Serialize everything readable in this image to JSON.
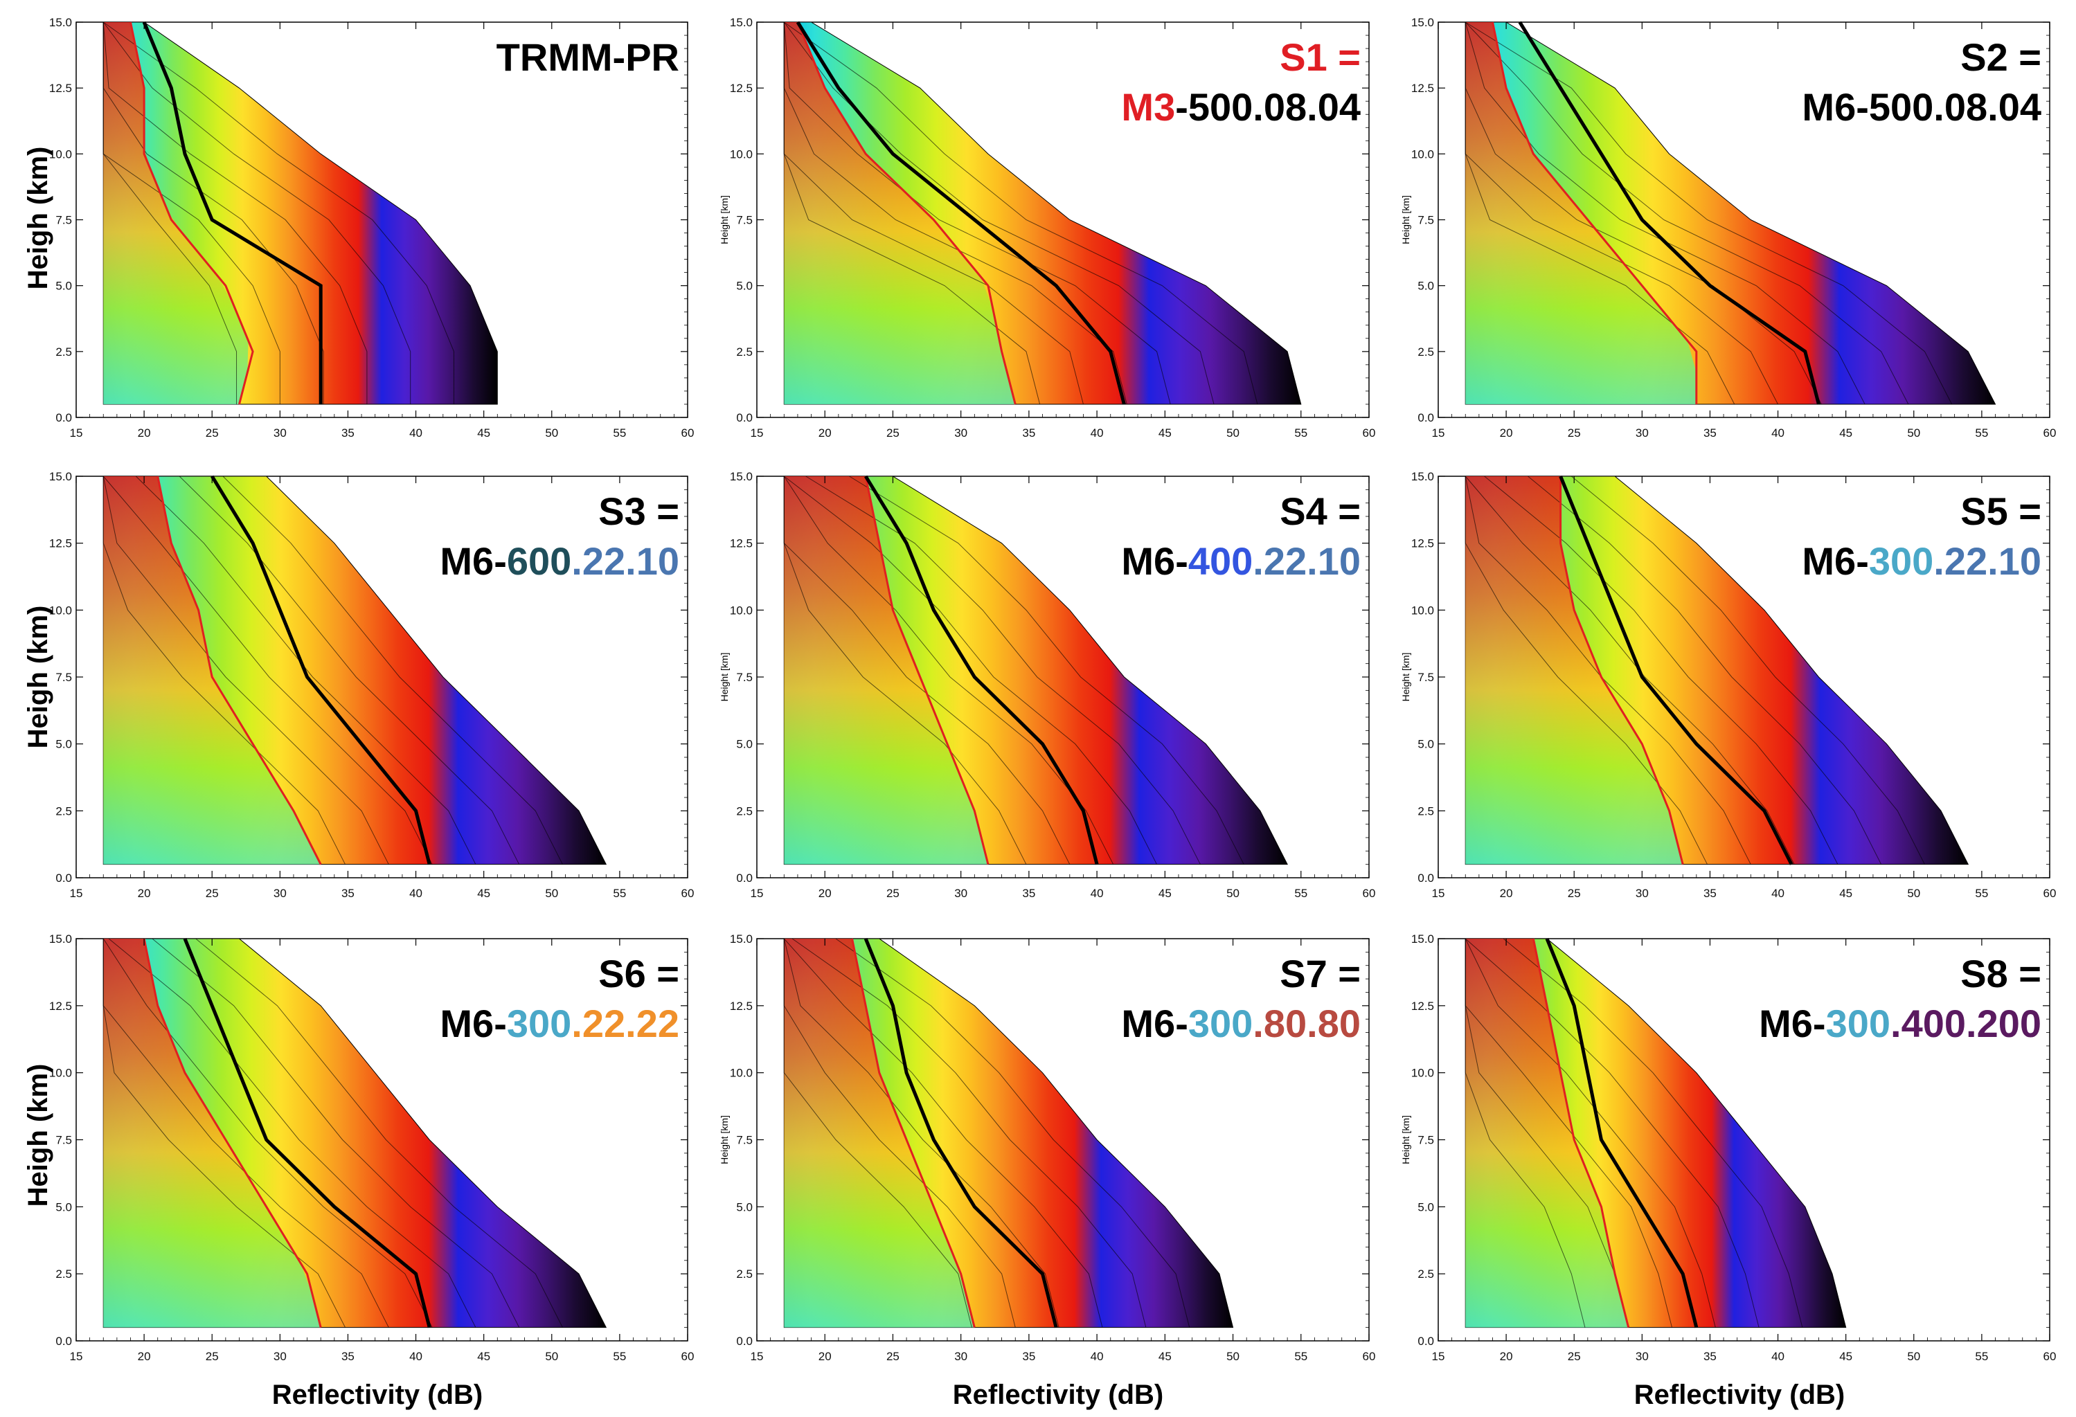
{
  "colors": {
    "contour_scale": [
      "#00bfe8",
      "#2ee0d8",
      "#4ee8a0",
      "#7ce85a",
      "#a8ec2a",
      "#d8f020",
      "#fde02a",
      "#fcc020",
      "#f89820",
      "#f46a18",
      "#ee3a10",
      "#e81a10"
    ],
    "outer_scale": [
      "#2020e0",
      "#4a20d0",
      "#5818a8",
      "#3c1270",
      "#1a0a30",
      "#000000"
    ],
    "median_line": "#000000",
    "tropical_line": "#e02020",
    "black": "#000000",
    "red": "#e01e24",
    "darkteal": "#1f4e5a",
    "steelblue": "#4a76b0",
    "royalblue": "#3355e0",
    "lightblue": "#4aa8c8",
    "orange": "#f0902a",
    "brownred": "#b84a40",
    "purple": "#5a1a60"
  },
  "axes": {
    "ylabel_bold": "Heigh (km)",
    "ylabel_small": "Height [km]",
    "xlabel": "Reflectivity (dB)",
    "x_ticks": [
      "15",
      "20",
      "25",
      "30",
      "35",
      "40",
      "45",
      "50",
      "55",
      "60"
    ],
    "y_ticks": [
      "0.0",
      "2.5",
      "5.0",
      "7.5",
      "10.0",
      "12.5",
      "15.0"
    ]
  },
  "chart_data": [
    {
      "type": "heatmap",
      "title_lines": [
        [
          {
            "text": "TRMM-PR",
            "color": "black"
          }
        ]
      ],
      "xlim": [
        15,
        60
      ],
      "ylim": [
        0,
        15
      ],
      "max_reflectivity_profile": {
        "height": [
          0.5,
          2.5,
          5.0,
          7.5,
          10.0,
          12.5,
          15.0
        ],
        "reflectivity": [
          46,
          46,
          44,
          40,
          33,
          27,
          20
        ]
      },
      "median_profile": {
        "height": [
          0.5,
          2.5,
          5.0,
          7.5,
          10.0,
          12.5,
          15.0
        ],
        "reflectivity": [
          33,
          33,
          33,
          25,
          23,
          22,
          20
        ]
      },
      "tropical_profile": {
        "height": [
          0.5,
          2.5,
          5.0,
          7.5,
          10.0,
          12.5,
          15.0
        ],
        "reflectivity": [
          27,
          28,
          26,
          22,
          20,
          20,
          19
        ]
      }
    },
    {
      "type": "heatmap",
      "title_lines": [
        [
          {
            "text": "S1 =",
            "color": "red"
          }
        ],
        [
          {
            "text": "M3",
            "color": "red"
          },
          {
            "text": "-500.08.04",
            "color": "black"
          }
        ]
      ],
      "xlim": [
        15,
        60
      ],
      "ylim": [
        0,
        15
      ],
      "max_reflectivity_profile": {
        "height": [
          0.5,
          2.5,
          5.0,
          7.5,
          10.0,
          12.5,
          15.0
        ],
        "reflectivity": [
          55,
          54,
          48,
          38,
          32,
          27,
          19
        ]
      },
      "median_profile": {
        "height": [
          0.5,
          2.5,
          5.0,
          7.5,
          10.0,
          12.5,
          15.0
        ],
        "reflectivity": [
          42,
          41,
          37,
          31,
          25,
          21,
          18
        ]
      },
      "tropical_profile": {
        "height": [
          0.5,
          2.5,
          5.0,
          7.5,
          10.0,
          12.5,
          15.0
        ],
        "reflectivity": [
          34,
          33,
          32,
          28,
          23,
          20,
          18
        ]
      }
    },
    {
      "type": "heatmap",
      "title_lines": [
        [
          {
            "text": "S2 =",
            "color": "black"
          }
        ],
        [
          {
            "text": "M6-500.08.04",
            "color": "black"
          }
        ]
      ],
      "xlim": [
        15,
        60
      ],
      "ylim": [
        0,
        15
      ],
      "max_reflectivity_profile": {
        "height": [
          0.5,
          2.5,
          5.0,
          7.5,
          10.0,
          12.5,
          15.0
        ],
        "reflectivity": [
          56,
          54,
          48,
          38,
          32,
          28,
          20
        ]
      },
      "median_profile": {
        "height": [
          0.5,
          2.5,
          5.0,
          7.5,
          10.0,
          12.5,
          15.0
        ],
        "reflectivity": [
          43,
          42,
          35,
          30,
          27,
          24,
          21
        ]
      },
      "tropical_profile": {
        "height": [
          0.5,
          2.5,
          5.0,
          7.5,
          10.0,
          12.5,
          15.0
        ],
        "reflectivity": [
          34,
          34,
          30,
          26,
          22,
          20,
          19
        ]
      }
    },
    {
      "type": "heatmap",
      "title_lines": [
        [
          {
            "text": "S3 =",
            "color": "black"
          }
        ],
        [
          {
            "text": "M6-",
            "color": "black"
          },
          {
            "text": "600",
            "color": "darkteal"
          },
          {
            "text": ".22.10",
            "color": "steelblue"
          }
        ]
      ],
      "xlim": [
        15,
        60
      ],
      "ylim": [
        0,
        15
      ],
      "max_reflectivity_profile": {
        "height": [
          0.5,
          2.5,
          5.0,
          7.5,
          10.0,
          12.5,
          15.0
        ],
        "reflectivity": [
          54,
          52,
          47,
          42,
          38,
          34,
          29
        ]
      },
      "median_profile": {
        "height": [
          0.5,
          2.5,
          5.0,
          7.5,
          10.0,
          12.5,
          15.0
        ],
        "reflectivity": [
          41,
          40,
          36,
          32,
          30,
          28,
          25
        ]
      },
      "tropical_profile": {
        "height": [
          0.5,
          2.5,
          5.0,
          7.5,
          10.0,
          12.5,
          15.0
        ],
        "reflectivity": [
          33,
          31,
          28,
          25,
          24,
          22,
          21
        ]
      }
    },
    {
      "type": "heatmap",
      "title_lines": [
        [
          {
            "text": "S4 =",
            "color": "black"
          }
        ],
        [
          {
            "text": "M6-",
            "color": "black"
          },
          {
            "text": "400",
            "color": "royalblue"
          },
          {
            "text": ".22.10",
            "color": "steelblue"
          }
        ]
      ],
      "xlim": [
        15,
        60
      ],
      "ylim": [
        0,
        15
      ],
      "max_reflectivity_profile": {
        "height": [
          0.5,
          2.5,
          5.0,
          7.5,
          10.0,
          12.5,
          15.0
        ],
        "reflectivity": [
          54,
          52,
          48,
          42,
          38,
          33,
          25
        ]
      },
      "median_profile": {
        "height": [
          0.5,
          2.5,
          5.0,
          7.5,
          10.0,
          12.5,
          15.0
        ],
        "reflectivity": [
          40,
          39,
          36,
          31,
          28,
          26,
          23
        ]
      },
      "tropical_profile": {
        "height": [
          0.5,
          2.5,
          5.0,
          7.5,
          10.0,
          12.5,
          15.0
        ],
        "reflectivity": [
          32,
          31,
          29,
          27,
          25,
          24,
          23
        ]
      }
    },
    {
      "type": "heatmap",
      "title_lines": [
        [
          {
            "text": "S5 =",
            "color": "black"
          }
        ],
        [
          {
            "text": "M6-",
            "color": "black"
          },
          {
            "text": "300",
            "color": "lightblue"
          },
          {
            "text": ".22.10",
            "color": "steelblue"
          }
        ]
      ],
      "xlim": [
        15,
        60
      ],
      "ylim": [
        0,
        15
      ],
      "max_reflectivity_profile": {
        "height": [
          0.5,
          2.5,
          5.0,
          7.5,
          10.0,
          12.5,
          15.0
        ],
        "reflectivity": [
          54,
          52,
          48,
          43,
          39,
          34,
          28
        ]
      },
      "median_profile": {
        "height": [
          0.5,
          2.5,
          5.0,
          7.5,
          10.0,
          12.5,
          15.0
        ],
        "reflectivity": [
          41,
          39,
          34,
          30,
          28,
          26,
          24
        ]
      },
      "tropical_profile": {
        "height": [
          0.5,
          2.5,
          5.0,
          7.5,
          10.0,
          12.5,
          15.0
        ],
        "reflectivity": [
          33,
          32,
          30,
          27,
          25,
          24,
          24
        ]
      }
    },
    {
      "type": "heatmap",
      "title_lines": [
        [
          {
            "text": "S6 =",
            "color": "black"
          }
        ],
        [
          {
            "text": "M6-",
            "color": "black"
          },
          {
            "text": "300",
            "color": "lightblue"
          },
          {
            "text": ".22.22",
            "color": "orange"
          }
        ]
      ],
      "xlim": [
        15,
        60
      ],
      "ylim": [
        0,
        15
      ],
      "max_reflectivity_profile": {
        "height": [
          0.5,
          2.5,
          5.0,
          7.5,
          10.0,
          12.5,
          15.0
        ],
        "reflectivity": [
          54,
          52,
          46,
          41,
          37,
          33,
          27
        ]
      },
      "median_profile": {
        "height": [
          0.5,
          2.5,
          5.0,
          7.5,
          10.0,
          12.5,
          15.0
        ],
        "reflectivity": [
          41,
          40,
          34,
          29,
          27,
          25,
          23
        ]
      },
      "tropical_profile": {
        "height": [
          0.5,
          2.5,
          5.0,
          7.5,
          10.0,
          12.5,
          15.0
        ],
        "reflectivity": [
          33,
          32,
          29,
          26,
          23,
          21,
          20
        ]
      }
    },
    {
      "type": "heatmap",
      "title_lines": [
        [
          {
            "text": "S7 =",
            "color": "black"
          }
        ],
        [
          {
            "text": "M6-",
            "color": "black"
          },
          {
            "text": "300",
            "color": "lightblue"
          },
          {
            "text": ".80.80",
            "color": "brownred"
          }
        ]
      ],
      "xlim": [
        15,
        60
      ],
      "ylim": [
        0,
        15
      ],
      "max_reflectivity_profile": {
        "height": [
          0.5,
          2.5,
          5.0,
          7.5,
          10.0,
          12.5,
          15.0
        ],
        "reflectivity": [
          50,
          49,
          45,
          40,
          36,
          31,
          24
        ]
      },
      "median_profile": {
        "height": [
          0.5,
          2.5,
          5.0,
          7.5,
          10.0,
          12.5,
          15.0
        ],
        "reflectivity": [
          37,
          36,
          31,
          28,
          26,
          25,
          23
        ]
      },
      "tropical_profile": {
        "height": [
          0.5,
          2.5,
          5.0,
          7.5,
          10.0,
          12.5,
          15.0
        ],
        "reflectivity": [
          31,
          30,
          28,
          26,
          24,
          23,
          22
        ]
      }
    },
    {
      "type": "heatmap",
      "title_lines": [
        [
          {
            "text": "S8 =",
            "color": "black"
          }
        ],
        [
          {
            "text": "M6-",
            "color": "black"
          },
          {
            "text": "300",
            "color": "lightblue"
          },
          {
            "text": ".400.200",
            "color": "purple"
          }
        ]
      ],
      "xlim": [
        15,
        60
      ],
      "ylim": [
        0,
        15
      ],
      "max_reflectivity_profile": {
        "height": [
          0.5,
          2.5,
          5.0,
          7.5,
          10.0,
          12.5,
          15.0
        ],
        "reflectivity": [
          45,
          44,
          42,
          38,
          34,
          29,
          23
        ]
      },
      "median_profile": {
        "height": [
          0.5,
          2.5,
          5.0,
          7.5,
          10.0,
          12.5,
          15.0
        ],
        "reflectivity": [
          34,
          33,
          30,
          27,
          26,
          25,
          23
        ]
      },
      "tropical_profile": {
        "height": [
          0.5,
          2.5,
          5.0,
          7.5,
          10.0,
          12.5,
          15.0
        ],
        "reflectivity": [
          29,
          28,
          27,
          25,
          24,
          23,
          22
        ]
      }
    }
  ]
}
